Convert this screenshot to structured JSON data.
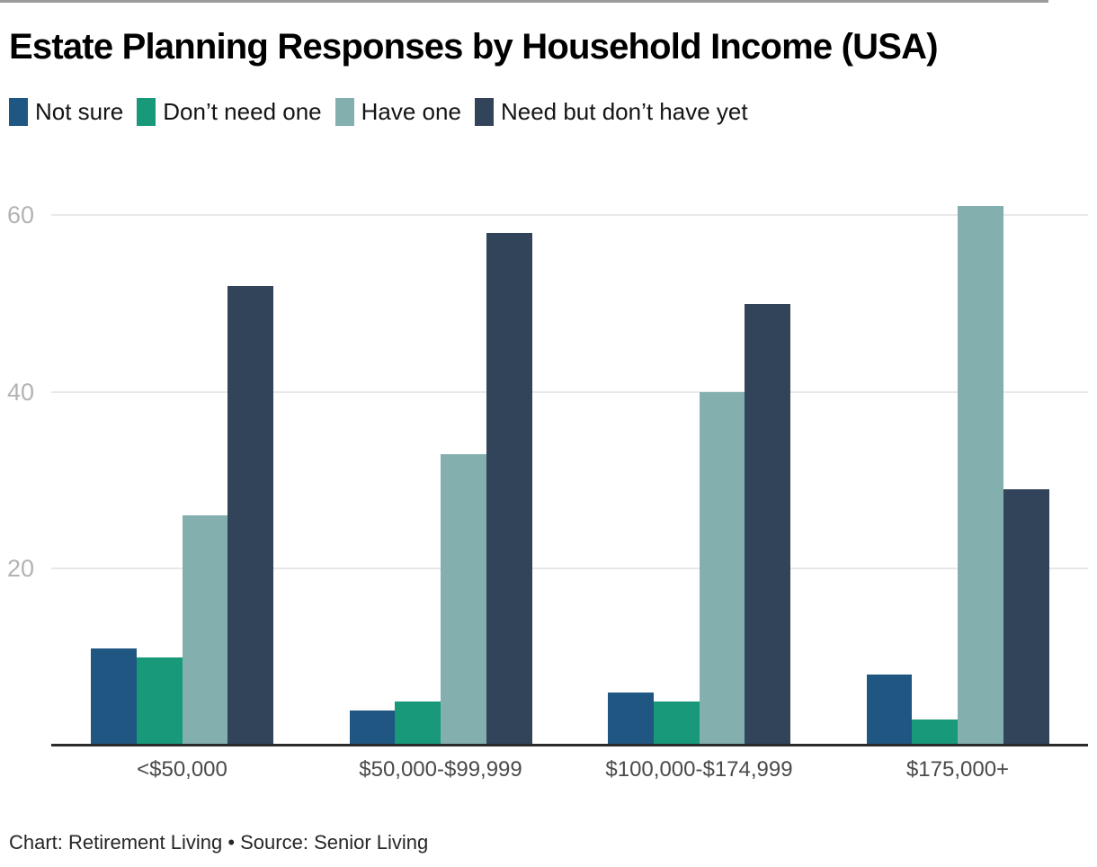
{
  "page": {
    "title": "Estate Planning Responses by Household Income (USA)",
    "footer": "Chart: Retirement Living • Source: Senior Living"
  },
  "colors": {
    "axis_line": "#2b2b2b",
    "gridline": "#e8e8e8",
    "y_tick_text": "#b3b3b3",
    "x_tick_text": "#4a4a4a",
    "title_text": "#000000",
    "footer_text": "#262626"
  },
  "chart_data": {
    "type": "bar",
    "title": "Estate Planning Responses by Household Income (USA)",
    "footer": "Chart: Retirement Living • Source: Senior Living",
    "categories": [
      "<$50,000",
      "$50,000-$99,999",
      "$100,000-$174,999",
      "$175,000+"
    ],
    "series": [
      {
        "name": "Not sure",
        "color": "#1f5682",
        "values": [
          11,
          4,
          6,
          8
        ]
      },
      {
        "name": "Don’t need one",
        "color": "#17997a",
        "values": [
          10,
          5,
          5,
          3
        ]
      },
      {
        "name": "Have one",
        "color": "#83b0af",
        "values": [
          26,
          33,
          40,
          61
        ]
      },
      {
        "name": "Need but don’t have yet",
        "color": "#314459",
        "values": [
          52,
          58,
          50,
          29
        ]
      }
    ],
    "xlabel": "",
    "ylabel": "",
    "y_ticks": [
      20,
      40,
      60
    ],
    "ylim": [
      0,
      63
    ],
    "grid": true,
    "legend_position": "top",
    "group_gap": true
  }
}
